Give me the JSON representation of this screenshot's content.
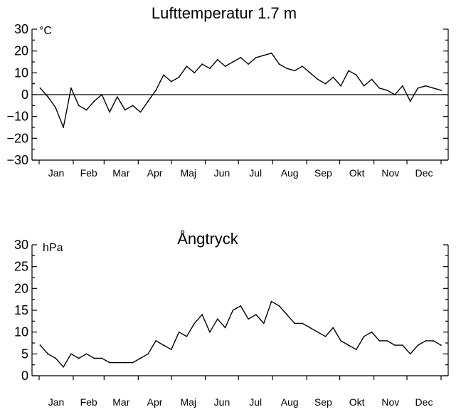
{
  "chart_data": [
    {
      "type": "line",
      "title": "Lufttemperatur 1.7 m",
      "unit_label": "°C",
      "xlabel": "",
      "ylabel": "",
      "ylim": [
        -30,
        30
      ],
      "yticks": [
        "−30",
        "−20",
        "−10",
        "0",
        "10",
        "20",
        "30"
      ],
      "ytick_values": [
        -30,
        -20,
        -10,
        0,
        10,
        20,
        30
      ],
      "months": [
        "Jan",
        "Feb",
        "Mar",
        "Apr",
        "Maj",
        "Jun",
        "Jul",
        "Aug",
        "Sep",
        "Okt",
        "Nov",
        "Dec"
      ],
      "zero_line": true,
      "series": [
        {
          "x": [
            1,
            8,
            15,
            22,
            29,
            36,
            43,
            50,
            57,
            64,
            71,
            78,
            85,
            92,
            99,
            106,
            113,
            120,
            127,
            134,
            141,
            148,
            155,
            162,
            169,
            176,
            183,
            190,
            197,
            204,
            211,
            218,
            225,
            232,
            239,
            246,
            253,
            260,
            267,
            274,
            281,
            288,
            295,
            302,
            309,
            316,
            323,
            330,
            337,
            344,
            351,
            358,
            365
          ],
          "values": [
            3,
            -1,
            -6,
            -15,
            3,
            -5,
            -7,
            -3,
            0,
            -8,
            -1,
            -7,
            -5,
            -8,
            -3,
            2,
            9,
            6,
            8,
            13,
            10,
            14,
            12,
            16,
            13,
            15,
            17,
            14,
            17,
            18,
            19,
            14,
            12,
            11,
            13,
            10,
            7,
            5,
            8,
            4,
            11,
            9,
            4,
            7,
            3,
            2,
            0,
            4,
            -3,
            3,
            4,
            3,
            2
          ]
        }
      ]
    },
    {
      "type": "line",
      "title": "Ångtryck",
      "unit_label": "hPa",
      "xlabel": "",
      "ylabel": "",
      "ylim": [
        0,
        30
      ],
      "yticks": [
        "0",
        "5",
        "10",
        "15",
        "20",
        "25",
        "30"
      ],
      "ytick_values": [
        0,
        5,
        10,
        15,
        20,
        25,
        30
      ],
      "months": [
        "Jan",
        "Feb",
        "Mar",
        "Apr",
        "Maj",
        "Jun",
        "Jul",
        "Aug",
        "Sep",
        "Okt",
        "Nov",
        "Dec"
      ],
      "series": [
        {
          "x": [
            1,
            8,
            15,
            22,
            29,
            36,
            43,
            50,
            57,
            64,
            71,
            78,
            85,
            92,
            99,
            106,
            113,
            120,
            127,
            134,
            141,
            148,
            155,
            162,
            169,
            176,
            183,
            190,
            197,
            204,
            211,
            218,
            225,
            232,
            239,
            246,
            253,
            260,
            267,
            274,
            281,
            288,
            295,
            302,
            309,
            316,
            323,
            330,
            337,
            344,
            351,
            358,
            365
          ],
          "values": [
            7,
            5,
            4,
            2,
            5,
            4,
            5,
            4,
            4,
            3,
            3,
            3,
            3,
            4,
            5,
            8,
            7,
            6,
            10,
            9,
            12,
            14,
            10,
            13,
            11,
            15,
            16,
            13,
            14,
            12,
            17,
            16,
            14,
            12,
            12,
            11,
            10,
            9,
            11,
            8,
            7,
            6,
            9,
            10,
            8,
            8,
            7,
            7,
            5,
            7,
            8,
            8,
            7
          ]
        }
      ]
    }
  ]
}
